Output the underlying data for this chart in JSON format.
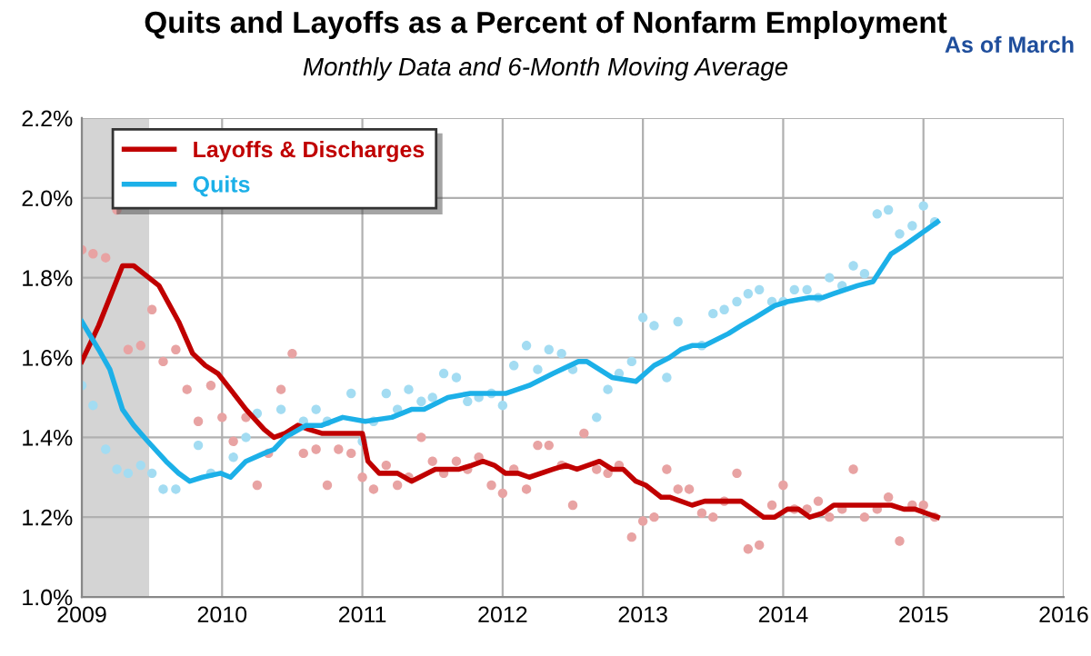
{
  "chart_data": {
    "type": "line",
    "title": "Quits and Layoffs as a Percent of Nonfarm Employment",
    "subtitle": "Monthly Data and 6-Month Moving Average",
    "annotations": [
      "As of March"
    ],
    "xlim": [
      2009,
      2016
    ],
    "xticks": [
      2009,
      2010,
      2011,
      2012,
      2013,
      2014,
      2015,
      2016
    ],
    "ylim": [
      1.0,
      2.2
    ],
    "yticks": [
      {
        "value": 1.0,
        "label": "1.0%"
      },
      {
        "value": 1.2,
        "label": "1.2%"
      },
      {
        "value": 1.4,
        "label": "1.4%"
      },
      {
        "value": 1.6,
        "label": "1.6%"
      },
      {
        "value": 1.8,
        "label": "1.8%"
      },
      {
        "value": 2.0,
        "label": "2.0%"
      },
      {
        "value": 2.2,
        "label": "2.2%"
      }
    ],
    "grid": true,
    "legend": "top left",
    "bands": [
      {
        "axis": "x",
        "from": 2009.0,
        "to": 2009.48,
        "color": "#d4d4d4"
      }
    ],
    "series": [
      {
        "type": "scatter",
        "marker": "circle",
        "color": "#e8a3a3",
        "x": [
          2009.0,
          2009.08,
          2009.17,
          2009.25,
          2009.33,
          2009.42,
          2009.5,
          2009.58,
          2009.67,
          2009.75,
          2009.83,
          2009.92,
          2010.0,
          2010.08,
          2010.17,
          2010.25,
          2010.33,
          2010.42,
          2010.5,
          2010.58,
          2010.67,
          2010.75,
          2010.83,
          2010.92,
          2011.0,
          2011.08,
          2011.17,
          2011.25,
          2011.33,
          2011.42,
          2011.5,
          2011.58,
          2011.67,
          2011.75,
          2011.83,
          2011.92,
          2012.0,
          2012.08,
          2012.17,
          2012.25,
          2012.33,
          2012.42,
          2012.5,
          2012.58,
          2012.67,
          2012.75,
          2012.83,
          2012.92,
          2013.0,
          2013.08,
          2013.17,
          2013.25,
          2013.33,
          2013.42,
          2013.5,
          2013.58,
          2013.67,
          2013.75,
          2013.83,
          2013.92,
          2014.0,
          2014.08,
          2014.17,
          2014.25,
          2014.33,
          2014.42,
          2014.5,
          2014.58,
          2014.67,
          2014.75,
          2014.83,
          2014.92,
          2015.0,
          2015.08
        ],
        "values": [
          1.87,
          1.86,
          1.85,
          1.97,
          1.62,
          1.63,
          1.72,
          1.59,
          1.62,
          1.52,
          1.44,
          1.53,
          1.45,
          1.39,
          1.45,
          1.28,
          1.36,
          1.52,
          1.61,
          1.36,
          1.37,
          1.28,
          1.37,
          1.36,
          1.3,
          1.27,
          1.33,
          1.28,
          1.3,
          1.4,
          1.34,
          1.31,
          1.34,
          1.32,
          1.35,
          1.28,
          1.26,
          1.32,
          1.27,
          1.38,
          1.38,
          1.33,
          1.23,
          1.41,
          1.32,
          1.31,
          1.33,
          1.15,
          1.19,
          1.2,
          1.32,
          1.27,
          1.27,
          1.21,
          1.2,
          1.24,
          1.31,
          1.12,
          1.13,
          1.23,
          1.28,
          1.22,
          1.22,
          1.24,
          1.2,
          1.22,
          1.32,
          1.2,
          1.22,
          1.25,
          1.14,
          1.23,
          1.23,
          1.2
        ]
      },
      {
        "type": "scatter",
        "marker": "circle",
        "color": "#a3dcf2",
        "x": [
          2009.0,
          2009.08,
          2009.17,
          2009.25,
          2009.33,
          2009.42,
          2009.5,
          2009.58,
          2009.67,
          2009.75,
          2009.83,
          2009.92,
          2010.0,
          2010.08,
          2010.17,
          2010.25,
          2010.33,
          2010.42,
          2010.5,
          2010.58,
          2010.67,
          2010.75,
          2010.83,
          2010.92,
          2011.0,
          2011.08,
          2011.17,
          2011.25,
          2011.33,
          2011.42,
          2011.5,
          2011.58,
          2011.67,
          2011.75,
          2011.83,
          2011.92,
          2012.0,
          2012.08,
          2012.17,
          2012.25,
          2012.33,
          2012.42,
          2012.5,
          2012.58,
          2012.67,
          2012.75,
          2012.83,
          2012.92,
          2013.0,
          2013.08,
          2013.17,
          2013.25,
          2013.33,
          2013.42,
          2013.5,
          2013.58,
          2013.67,
          2013.75,
          2013.83,
          2013.92,
          2014.0,
          2014.08,
          2014.17,
          2014.25,
          2014.33,
          2014.42,
          2014.5,
          2014.58,
          2014.67,
          2014.75,
          2014.83,
          2014.92,
          2015.0,
          2015.08
        ],
        "values": [
          1.53,
          1.48,
          1.37,
          1.32,
          1.31,
          1.33,
          1.31,
          1.27,
          1.27,
          null,
          1.38,
          1.31,
          null,
          1.35,
          1.4,
          1.46,
          null,
          1.47,
          null,
          1.44,
          1.47,
          1.44,
          null,
          1.51,
          1.39,
          1.44,
          1.51,
          1.47,
          1.52,
          1.49,
          1.5,
          1.56,
          1.55,
          1.49,
          1.5,
          1.51,
          1.48,
          1.58,
          1.63,
          1.57,
          1.62,
          1.61,
          1.57,
          null,
          1.45,
          1.52,
          1.56,
          1.59,
          1.7,
          1.68,
          1.55,
          1.69,
          null,
          1.63,
          1.71,
          1.72,
          1.74,
          1.76,
          1.77,
          1.74,
          1.74,
          1.77,
          1.77,
          1.75,
          1.8,
          1.78,
          1.83,
          1.81,
          1.96,
          1.97,
          1.91,
          1.93,
          1.98,
          1.94
        ]
      },
      {
        "name": "Layoffs & Discharges",
        "color": "#c00000",
        "x": [
          2009.0,
          2009.12,
          2009.29,
          2009.37,
          2009.55,
          2009.69,
          2009.79,
          2009.88,
          2009.97,
          2010.06,
          2010.17,
          2010.3,
          2010.37,
          2010.45,
          2010.54,
          2010.62,
          2010.71,
          2010.86,
          2010.95,
          2011.0,
          2011.04,
          2011.12,
          2011.25,
          2011.35,
          2011.52,
          2011.69,
          2011.78,
          2011.86,
          2011.94,
          2012.02,
          2012.11,
          2012.19,
          2012.36,
          2012.45,
          2012.53,
          2012.69,
          2012.78,
          2012.86,
          2012.95,
          2013.02,
          2013.13,
          2013.19,
          2013.35,
          2013.44,
          2013.53,
          2013.62,
          2013.7,
          2013.86,
          2013.94,
          2014.03,
          2014.11,
          2014.19,
          2014.28,
          2014.36,
          2014.44,
          2014.53,
          2014.69,
          2014.77,
          2014.86,
          2014.94,
          2015.02,
          2015.1
        ],
        "values": [
          1.59,
          1.68,
          1.83,
          1.83,
          1.78,
          1.69,
          1.61,
          1.58,
          1.56,
          1.52,
          1.47,
          1.42,
          1.4,
          1.41,
          1.43,
          1.42,
          1.41,
          1.41,
          1.41,
          1.41,
          1.34,
          1.31,
          1.31,
          1.29,
          1.32,
          1.32,
          1.33,
          1.34,
          1.33,
          1.31,
          1.31,
          1.3,
          1.32,
          1.33,
          1.32,
          1.34,
          1.32,
          1.32,
          1.29,
          1.28,
          1.25,
          1.25,
          1.23,
          1.24,
          1.24,
          1.24,
          1.24,
          1.2,
          1.2,
          1.22,
          1.22,
          1.2,
          1.21,
          1.23,
          1.23,
          1.23,
          1.23,
          1.23,
          1.22,
          1.22,
          1.21,
          1.2
        ]
      },
      {
        "name": "Quits",
        "color": "#1cb0e8",
        "x": [
          2009.0,
          2009.12,
          2009.2,
          2009.29,
          2009.37,
          2009.47,
          2009.6,
          2009.69,
          2009.77,
          2009.86,
          2009.99,
          2010.06,
          2010.17,
          2010.3,
          2010.37,
          2010.45,
          2010.6,
          2010.71,
          2010.86,
          2011.02,
          2011.21,
          2011.35,
          2011.44,
          2011.61,
          2011.77,
          2011.94,
          2012.02,
          2012.19,
          2012.36,
          2012.54,
          2012.6,
          2012.78,
          2012.95,
          2013.08,
          2013.19,
          2013.27,
          2013.35,
          2013.44,
          2013.61,
          2013.7,
          2013.8,
          2013.94,
          2014.03,
          2014.19,
          2014.28,
          2014.36,
          2014.53,
          2014.64,
          2014.77,
          2014.86,
          2015.02,
          2015.1
        ],
        "values": [
          1.69,
          1.62,
          1.57,
          1.47,
          1.43,
          1.39,
          1.34,
          1.31,
          1.29,
          1.3,
          1.31,
          1.3,
          1.34,
          1.36,
          1.37,
          1.4,
          1.43,
          1.43,
          1.45,
          1.44,
          1.45,
          1.47,
          1.47,
          1.5,
          1.51,
          1.51,
          1.51,
          1.53,
          1.56,
          1.59,
          1.59,
          1.55,
          1.54,
          1.58,
          1.6,
          1.62,
          1.63,
          1.63,
          1.66,
          1.68,
          1.7,
          1.73,
          1.74,
          1.75,
          1.75,
          1.76,
          1.78,
          1.79,
          1.86,
          1.88,
          1.92,
          1.94
        ]
      }
    ]
  }
}
